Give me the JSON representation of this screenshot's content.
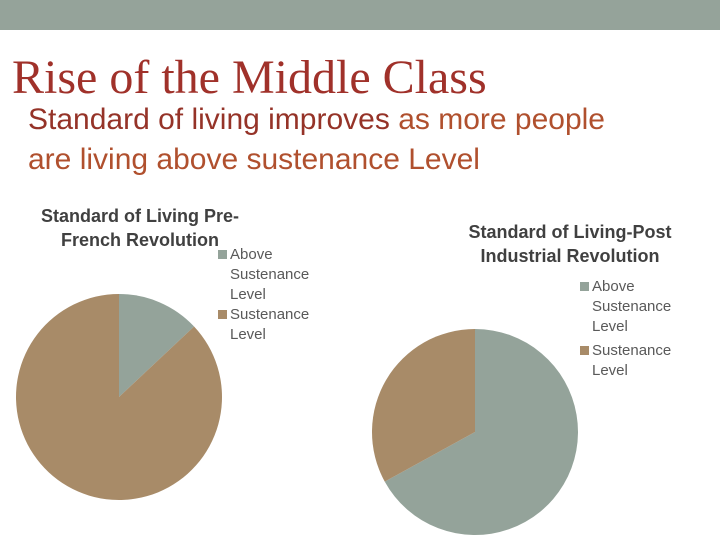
{
  "slide": {
    "title": "Rise of the Middle Class",
    "subtitle_highlight": "Standard of living improves",
    "subtitle_rest": " as more people are living above sustenance Level"
  },
  "colors": {
    "top_band": "#95a39a",
    "title": "#a0312a",
    "subtitle": "#b0502e",
    "above": "#94a39a",
    "sustenance": "#a88b68"
  },
  "chart_data": [
    {
      "type": "pie",
      "title_lines": [
        "Standard of Living Pre-",
        "French Revolution"
      ],
      "categories": [
        "Above Sustenance Level",
        "Sustenance Level"
      ],
      "values": [
        13,
        87
      ],
      "legend_placement": "right"
    },
    {
      "type": "pie",
      "title_lines": [
        "Standard of Living-Post",
        "Industrial Revolution"
      ],
      "categories": [
        "Above Sustenance Level",
        "Sustenance Level"
      ],
      "values": [
        67,
        33
      ],
      "legend_placement": "right"
    }
  ],
  "legend": {
    "above_lines": [
      "Above",
      "Sustenance",
      "Level"
    ],
    "sustenance_lines": [
      "Sustenance",
      "Level"
    ]
  }
}
